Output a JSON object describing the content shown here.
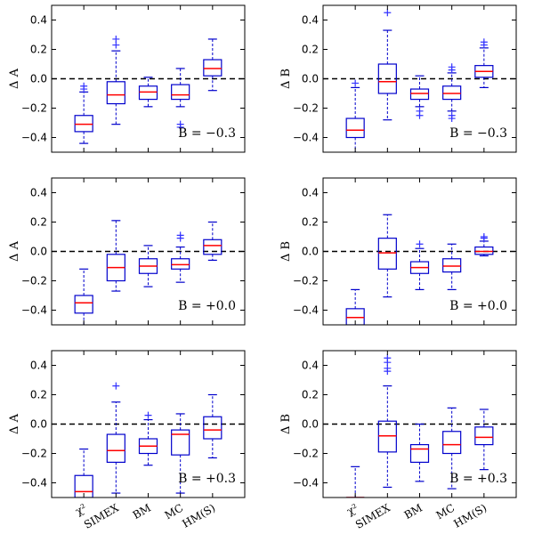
{
  "chart_data": [
    {
      "type": "box",
      "panel": "top-left",
      "ylabel": "Δ A",
      "annotation": "B = −0.3",
      "ylim": [
        -0.5,
        0.5
      ],
      "yticks": [
        -0.4,
        -0.2,
        0.0,
        0.2,
        0.4
      ],
      "ytick_labels": [
        "−0.4",
        "−0.2",
        "0.0",
        "0.2",
        "0.4"
      ],
      "categories": [
        "χ²",
        "SIMEX",
        "BM",
        "MC",
        "HM(S)"
      ],
      "reference_line": 0.0,
      "boxes": [
        {
          "whislo": -0.44,
          "q1": -0.36,
          "med": -0.31,
          "q3": -0.25,
          "whishi": -0.09,
          "fliers": [
            -0.07,
            -0.05
          ]
        },
        {
          "whislo": -0.31,
          "q1": -0.17,
          "med": -0.11,
          "q3": -0.02,
          "whishi": 0.19,
          "fliers": [
            0.23,
            0.27
          ]
        },
        {
          "whislo": -0.19,
          "q1": -0.14,
          "med": -0.09,
          "q3": -0.05,
          "whishi": 0.01,
          "fliers": []
        },
        {
          "whislo": -0.19,
          "q1": -0.14,
          "med": -0.11,
          "q3": -0.04,
          "whishi": 0.07,
          "fliers": [
            -0.31,
            -0.33
          ]
        },
        {
          "whislo": -0.08,
          "q1": 0.02,
          "med": 0.07,
          "q3": 0.13,
          "whishi": 0.27,
          "fliers": []
        }
      ]
    },
    {
      "type": "box",
      "panel": "top-right",
      "ylabel": "Δ B",
      "annotation": "B = −0.3",
      "ylim": [
        -0.5,
        0.5
      ],
      "yticks": [
        -0.4,
        -0.2,
        0.0,
        0.2,
        0.4
      ],
      "ytick_labels": [
        "−0.4",
        "−0.2",
        "0.0",
        "0.2",
        "0.4"
      ],
      "categories": [
        "χ²",
        "SIMEX",
        "BM",
        "MC",
        "HM(S)"
      ],
      "reference_line": 0.0,
      "boxes": [
        {
          "whislo": -0.5,
          "q1": -0.4,
          "med": -0.35,
          "q3": -0.27,
          "whishi": -0.06,
          "fliers": [
            -0.03
          ]
        },
        {
          "whislo": -0.28,
          "q1": -0.1,
          "med": -0.02,
          "q3": 0.1,
          "whishi": 0.33,
          "fliers": [
            0.45
          ]
        },
        {
          "whislo": -0.19,
          "q1": -0.14,
          "med": -0.1,
          "q3": -0.07,
          "whishi": 0.02,
          "fliers": [
            -0.22,
            -0.25
          ]
        },
        {
          "whislo": -0.22,
          "q1": -0.14,
          "med": -0.1,
          "q3": -0.05,
          "whishi": 0.04,
          "fliers": [
            -0.25,
            -0.27,
            0.06,
            0.08
          ]
        },
        {
          "whislo": -0.06,
          "q1": 0.01,
          "med": 0.05,
          "q3": 0.09,
          "whishi": 0.21,
          "fliers": [
            0.23,
            0.25
          ]
        }
      ]
    },
    {
      "type": "box",
      "panel": "middle-left",
      "ylabel": "Δ A",
      "annotation": "B = +0.0",
      "ylim": [
        -0.5,
        0.5
      ],
      "yticks": [
        -0.4,
        -0.2,
        0.0,
        0.2,
        0.4
      ],
      "ytick_labels": [
        "−0.4",
        "−0.2",
        "0.0",
        "0.2",
        "0.4"
      ],
      "categories": [
        "χ²",
        "SIMEX",
        "BM",
        "MC",
        "HM(S)"
      ],
      "reference_line": 0.0,
      "boxes": [
        {
          "whislo": -0.5,
          "q1": -0.42,
          "med": -0.35,
          "q3": -0.3,
          "whishi": -0.12,
          "fliers": []
        },
        {
          "whislo": -0.27,
          "q1": -0.2,
          "med": -0.11,
          "q3": -0.02,
          "whishi": 0.21,
          "fliers": []
        },
        {
          "whislo": -0.24,
          "q1": -0.15,
          "med": -0.1,
          "q3": -0.05,
          "whishi": 0.04,
          "fliers": []
        },
        {
          "whislo": -0.21,
          "q1": -0.12,
          "med": -0.09,
          "q3": -0.05,
          "whishi": 0.03,
          "fliers": [
            0.09,
            0.11
          ]
        },
        {
          "whislo": -0.06,
          "q1": -0.02,
          "med": 0.04,
          "q3": 0.08,
          "whishi": 0.2,
          "fliers": []
        }
      ]
    },
    {
      "type": "box",
      "panel": "middle-right",
      "ylabel": "Δ B",
      "annotation": "B = +0.0",
      "ylim": [
        -0.5,
        0.5
      ],
      "yticks": [
        -0.4,
        -0.2,
        0.0,
        0.2,
        0.4
      ],
      "ytick_labels": [
        "−0.4",
        "−0.2",
        "0.0",
        "0.2",
        "0.4"
      ],
      "categories": [
        "χ²",
        "SIMEX",
        "BM",
        "MC",
        "HM(S)"
      ],
      "reference_line": 0.0,
      "boxes": [
        {
          "whislo": -0.5,
          "q1": -0.5,
          "med": -0.45,
          "q3": -0.39,
          "whishi": -0.26,
          "fliers": []
        },
        {
          "whislo": -0.31,
          "q1": -0.12,
          "med": -0.01,
          "q3": 0.09,
          "whishi": 0.25,
          "fliers": []
        },
        {
          "whislo": -0.26,
          "q1": -0.15,
          "med": -0.11,
          "q3": -0.07,
          "whishi": 0.02,
          "fliers": [
            0.05
          ]
        },
        {
          "whislo": -0.26,
          "q1": -0.14,
          "med": -0.1,
          "q3": -0.05,
          "whishi": 0.05,
          "fliers": []
        },
        {
          "whislo": -0.03,
          "q1": -0.02,
          "med": 0.0,
          "q3": 0.03,
          "whishi": 0.07,
          "fliers": [
            0.09,
            0.1
          ]
        }
      ]
    },
    {
      "type": "box",
      "panel": "bottom-left",
      "ylabel": "Δ A",
      "annotation": "B = +0.3",
      "ylim": [
        -0.5,
        0.5
      ],
      "yticks": [
        -0.4,
        -0.2,
        0.0,
        0.2,
        0.4
      ],
      "ytick_labels": [
        "−0.4",
        "−0.2",
        "0.0",
        "0.2",
        "0.4"
      ],
      "categories": [
        "χ²",
        "SIMEX",
        "BM",
        "MC",
        "HM(S)"
      ],
      "reference_line": 0.0,
      "boxes": [
        {
          "whislo": -0.5,
          "q1": -0.5,
          "med": -0.46,
          "q3": -0.35,
          "whishi": -0.17,
          "fliers": []
        },
        {
          "whislo": -0.47,
          "q1": -0.26,
          "med": -0.18,
          "q3": -0.07,
          "whishi": 0.15,
          "fliers": [
            0.26
          ]
        },
        {
          "whislo": -0.28,
          "q1": -0.2,
          "med": -0.15,
          "q3": -0.1,
          "whishi": 0.03,
          "fliers": [
            0.06
          ]
        },
        {
          "whislo": -0.47,
          "q1": -0.21,
          "med": -0.07,
          "q3": -0.04,
          "whishi": 0.07,
          "fliers": []
        },
        {
          "whislo": -0.23,
          "q1": -0.1,
          "med": -0.04,
          "q3": 0.05,
          "whishi": 0.2,
          "fliers": []
        }
      ]
    },
    {
      "type": "box",
      "panel": "bottom-right",
      "ylabel": "Δ B",
      "annotation": "B = +0.3",
      "ylim": [
        -0.5,
        0.5
      ],
      "yticks": [
        -0.4,
        -0.2,
        0.0,
        0.2,
        0.4
      ],
      "ytick_labels": [
        "−0.4",
        "−0.2",
        "0.0",
        "0.2",
        "0.4"
      ],
      "categories": [
        "χ²",
        "SIMEX",
        "BM",
        "MC",
        "HM(S)"
      ],
      "reference_line": 0.0,
      "boxes": [
        {
          "whislo": -0.5,
          "q1": -0.5,
          "med": -0.5,
          "q3": -0.5,
          "whishi": -0.29,
          "fliers": []
        },
        {
          "whislo": -0.43,
          "q1": -0.19,
          "med": -0.08,
          "q3": 0.02,
          "whishi": 0.26,
          "fliers": [
            0.36,
            0.38,
            0.42,
            0.45
          ]
        },
        {
          "whislo": -0.39,
          "q1": -0.26,
          "med": -0.17,
          "q3": -0.14,
          "whishi": 0.0,
          "fliers": []
        },
        {
          "whislo": -0.44,
          "q1": -0.2,
          "med": -0.14,
          "q3": -0.05,
          "whishi": 0.11,
          "fliers": []
        },
        {
          "whislo": -0.31,
          "q1": -0.14,
          "med": -0.09,
          "q3": -0.02,
          "whishi": 0.1,
          "fliers": []
        }
      ]
    }
  ],
  "colors": {
    "box": "#0000cc",
    "median": "#ff0000",
    "flier": "#3333ff",
    "reference": "#000000",
    "axes": "#000000"
  }
}
